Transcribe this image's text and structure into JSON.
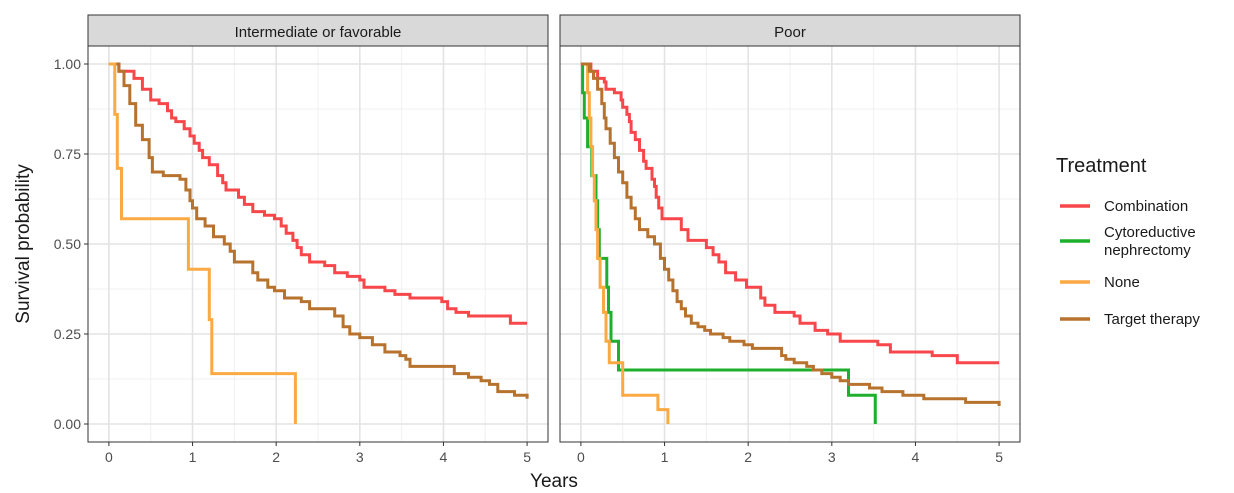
{
  "chart_data": {
    "type": "line",
    "step": true,
    "xlabel": "Years",
    "ylabel": "Survival probability",
    "xlim": [
      -0.25,
      5.25
    ],
    "ylim": [
      -0.05,
      1.05
    ],
    "xticks": [
      0,
      1,
      2,
      3,
      4,
      5
    ],
    "yticks": [
      0.0,
      0.25,
      0.5,
      0.75,
      1.0
    ],
    "xtick_labels": [
      "0",
      "1",
      "2",
      "3",
      "4",
      "5"
    ],
    "ytick_labels": [
      "0.00",
      "0.25",
      "0.50",
      "0.75",
      "1.00"
    ],
    "grid": true,
    "legend": {
      "title": "Treatment",
      "position": "right",
      "entries": [
        {
          "key": "combination",
          "lines": [
            "Combination"
          ],
          "color": "#F8474B"
        },
        {
          "key": "cytoreductive",
          "lines": [
            "Cytoreductive",
            "nephrectomy"
          ],
          "color": "#1EB02C"
        },
        {
          "key": "none",
          "lines": [
            "None"
          ],
          "color": "#FBA943"
        },
        {
          "key": "target",
          "lines": [
            "Target therapy"
          ],
          "color": "#B7732D"
        }
      ]
    },
    "panels": [
      {
        "title": "Intermediate or favorable",
        "series": [
          {
            "key": "combination",
            "name": "Combination",
            "color": "#F8474B",
            "points": [
              [
                0,
                1.0
              ],
              [
                0.12,
                0.98
              ],
              [
                0.3,
                0.96
              ],
              [
                0.4,
                0.93
              ],
              [
                0.5,
                0.9
              ],
              [
                0.6,
                0.89
              ],
              [
                0.7,
                0.87
              ],
              [
                0.75,
                0.85
              ],
              [
                0.8,
                0.84
              ],
              [
                0.9,
                0.82
              ],
              [
                0.97,
                0.8
              ],
              [
                1.02,
                0.78
              ],
              [
                1.08,
                0.76
              ],
              [
                1.12,
                0.74
              ],
              [
                1.2,
                0.72
              ],
              [
                1.3,
                0.69
              ],
              [
                1.36,
                0.67
              ],
              [
                1.4,
                0.65
              ],
              [
                1.55,
                0.63
              ],
              [
                1.62,
                0.61
              ],
              [
                1.72,
                0.59
              ],
              [
                1.86,
                0.58
              ],
              [
                1.98,
                0.57
              ],
              [
                2.06,
                0.55
              ],
              [
                2.12,
                0.53
              ],
              [
                2.2,
                0.51
              ],
              [
                2.25,
                0.49
              ],
              [
                2.3,
                0.47
              ],
              [
                2.4,
                0.45
              ],
              [
                2.58,
                0.44
              ],
              [
                2.7,
                0.42
              ],
              [
                2.85,
                0.41
              ],
              [
                3.0,
                0.4
              ],
              [
                3.05,
                0.38
              ],
              [
                3.3,
                0.37
              ],
              [
                3.42,
                0.36
              ],
              [
                3.6,
                0.35
              ],
              [
                3.98,
                0.34
              ],
              [
                4.05,
                0.32
              ],
              [
                4.15,
                0.31
              ],
              [
                4.3,
                0.3
              ],
              [
                4.8,
                0.28
              ],
              [
                5.0,
                0.28
              ]
            ]
          },
          {
            "key": "target",
            "name": "Target therapy",
            "color": "#B7732D",
            "points": [
              [
                0,
                1.0
              ],
              [
                0.12,
                0.98
              ],
              [
                0.18,
                0.94
              ],
              [
                0.25,
                0.89
              ],
              [
                0.32,
                0.83
              ],
              [
                0.4,
                0.79
              ],
              [
                0.48,
                0.74
              ],
              [
                0.52,
                0.7
              ],
              [
                0.65,
                0.69
              ],
              [
                0.85,
                0.68
              ],
              [
                0.92,
                0.65
              ],
              [
                0.97,
                0.62
              ],
              [
                1.0,
                0.6
              ],
              [
                1.05,
                0.57
              ],
              [
                1.15,
                0.55
              ],
              [
                1.25,
                0.52
              ],
              [
                1.38,
                0.5
              ],
              [
                1.45,
                0.48
              ],
              [
                1.5,
                0.45
              ],
              [
                1.72,
                0.42
              ],
              [
                1.78,
                0.4
              ],
              [
                1.9,
                0.38
              ],
              [
                1.98,
                0.37
              ],
              [
                2.1,
                0.35
              ],
              [
                2.3,
                0.34
              ],
              [
                2.4,
                0.32
              ],
              [
                2.7,
                0.3
              ],
              [
                2.8,
                0.27
              ],
              [
                2.88,
                0.25
              ],
              [
                3.0,
                0.24
              ],
              [
                3.15,
                0.22
              ],
              [
                3.3,
                0.2
              ],
              [
                3.48,
                0.19
              ],
              [
                3.55,
                0.18
              ],
              [
                3.6,
                0.16
              ],
              [
                4.13,
                0.14
              ],
              [
                4.3,
                0.13
              ],
              [
                4.45,
                0.12
              ],
              [
                4.55,
                0.11
              ],
              [
                4.65,
                0.09
              ],
              [
                4.85,
                0.08
              ],
              [
                5.0,
                0.07
              ]
            ]
          },
          {
            "key": "none",
            "name": "None",
            "color": "#FBA943",
            "points": [
              [
                0,
                1.0
              ],
              [
                0.07,
                0.86
              ],
              [
                0.1,
                0.71
              ],
              [
                0.15,
                0.57
              ],
              [
                0.95,
                0.43
              ],
              [
                1.2,
                0.29
              ],
              [
                1.23,
                0.14
              ],
              [
                2.23,
                0.0
              ]
            ]
          }
        ]
      },
      {
        "title": "Poor",
        "series": [
          {
            "key": "combination",
            "name": "Combination",
            "color": "#F8474B",
            "points": [
              [
                0,
                1.0
              ],
              [
                0.12,
                0.98
              ],
              [
                0.2,
                0.96
              ],
              [
                0.28,
                0.95
              ],
              [
                0.3,
                0.93
              ],
              [
                0.4,
                0.92
              ],
              [
                0.48,
                0.9
              ],
              [
                0.5,
                0.88
              ],
              [
                0.55,
                0.86
              ],
              [
                0.58,
                0.84
              ],
              [
                0.6,
                0.81
              ],
              [
                0.65,
                0.79
              ],
              [
                0.7,
                0.76
              ],
              [
                0.75,
                0.73
              ],
              [
                0.78,
                0.71
              ],
              [
                0.85,
                0.68
              ],
              [
                0.88,
                0.66
              ],
              [
                0.9,
                0.63
              ],
              [
                0.93,
                0.6
              ],
              [
                0.97,
                0.57
              ],
              [
                1.2,
                0.54
              ],
              [
                1.28,
                0.51
              ],
              [
                1.5,
                0.49
              ],
              [
                1.58,
                0.47
              ],
              [
                1.65,
                0.45
              ],
              [
                1.73,
                0.42
              ],
              [
                1.85,
                0.4
              ],
              [
                1.98,
                0.38
              ],
              [
                2.15,
                0.35
              ],
              [
                2.2,
                0.33
              ],
              [
                2.32,
                0.31
              ],
              [
                2.55,
                0.3
              ],
              [
                2.62,
                0.28
              ],
              [
                2.8,
                0.26
              ],
              [
                2.95,
                0.25
              ],
              [
                3.1,
                0.23
              ],
              [
                3.55,
                0.22
              ],
              [
                3.7,
                0.2
              ],
              [
                4.2,
                0.19
              ],
              [
                4.5,
                0.17
              ],
              [
                5.0,
                0.17
              ]
            ]
          },
          {
            "key": "cytoreductive",
            "name": "Cytoreductive nephrectomy",
            "color": "#1EB02C",
            "points": [
              [
                0,
                1.0
              ],
              [
                0.02,
                0.92
              ],
              [
                0.04,
                0.85
              ],
              [
                0.08,
                0.77
              ],
              [
                0.13,
                0.69
              ],
              [
                0.18,
                0.62
              ],
              [
                0.2,
                0.54
              ],
              [
                0.22,
                0.46
              ],
              [
                0.31,
                0.38
              ],
              [
                0.33,
                0.31
              ],
              [
                0.36,
                0.23
              ],
              [
                0.45,
                0.15
              ],
              [
                3.2,
                0.08
              ],
              [
                3.52,
                0.0
              ]
            ]
          },
          {
            "key": "none",
            "name": "None",
            "color": "#FBA943",
            "points": [
              [
                0,
                1.0
              ],
              [
                0.08,
                0.92
              ],
              [
                0.1,
                0.85
              ],
              [
                0.12,
                0.77
              ],
              [
                0.14,
                0.69
              ],
              [
                0.16,
                0.62
              ],
              [
                0.18,
                0.54
              ],
              [
                0.2,
                0.46
              ],
              [
                0.23,
                0.38
              ],
              [
                0.27,
                0.31
              ],
              [
                0.3,
                0.23
              ],
              [
                0.34,
                0.17
              ],
              [
                0.5,
                0.08
              ],
              [
                0.92,
                0.04
              ],
              [
                1.04,
                0.0
              ]
            ]
          },
          {
            "key": "target",
            "name": "Target therapy",
            "color": "#B7732D",
            "points": [
              [
                0,
                1.0
              ],
              [
                0.1,
                0.98
              ],
              [
                0.15,
                0.96
              ],
              [
                0.2,
                0.93
              ],
              [
                0.25,
                0.89
              ],
              [
                0.28,
                0.85
              ],
              [
                0.3,
                0.82
              ],
              [
                0.35,
                0.78
              ],
              [
                0.4,
                0.74
              ],
              [
                0.45,
                0.7
              ],
              [
                0.5,
                0.67
              ],
              [
                0.55,
                0.63
              ],
              [
                0.6,
                0.6
              ],
              [
                0.65,
                0.57
              ],
              [
                0.7,
                0.54
              ],
              [
                0.8,
                0.52
              ],
              [
                0.88,
                0.5
              ],
              [
                0.95,
                0.46
              ],
              [
                1.0,
                0.43
              ],
              [
                1.05,
                0.4
              ],
              [
                1.1,
                0.37
              ],
              [
                1.15,
                0.34
              ],
              [
                1.2,
                0.32
              ],
              [
                1.25,
                0.3
              ],
              [
                1.32,
                0.28
              ],
              [
                1.4,
                0.27
              ],
              [
                1.48,
                0.26
              ],
              [
                1.55,
                0.25
              ],
              [
                1.7,
                0.24
              ],
              [
                1.78,
                0.23
              ],
              [
                1.95,
                0.22
              ],
              [
                2.05,
                0.21
              ],
              [
                2.4,
                0.19
              ],
              [
                2.45,
                0.18
              ],
              [
                2.55,
                0.17
              ],
              [
                2.7,
                0.16
              ],
              [
                2.78,
                0.15
              ],
              [
                2.88,
                0.14
              ],
              [
                3.0,
                0.13
              ],
              [
                3.1,
                0.12
              ],
              [
                3.2,
                0.11
              ],
              [
                3.45,
                0.1
              ],
              [
                3.6,
                0.09
              ],
              [
                3.85,
                0.08
              ],
              [
                4.1,
                0.07
              ],
              [
                4.6,
                0.06
              ],
              [
                5.0,
                0.05
              ]
            ]
          }
        ]
      }
    ]
  }
}
